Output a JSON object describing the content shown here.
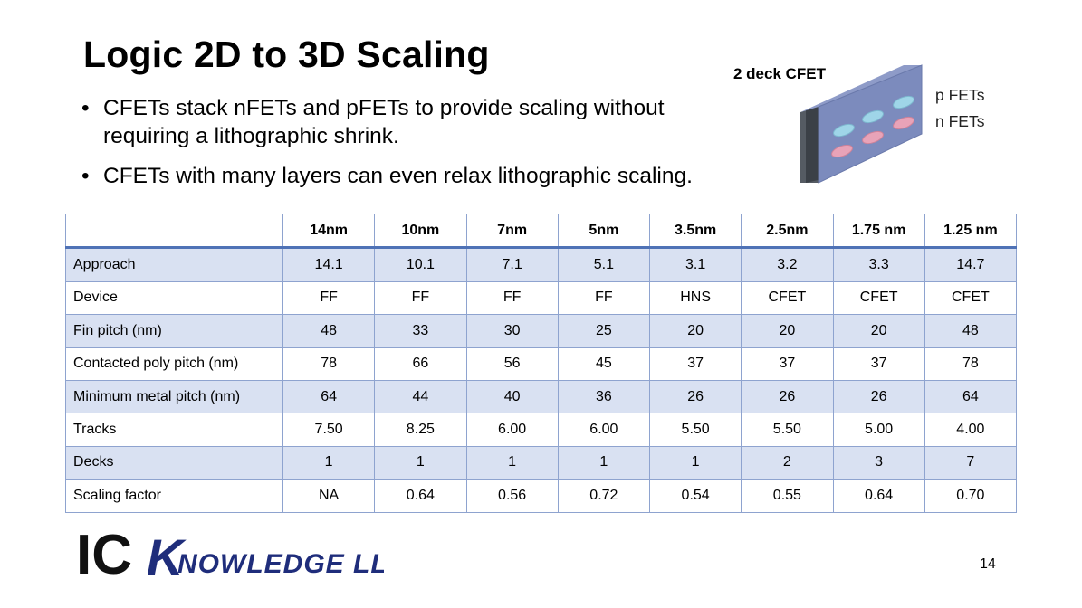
{
  "slide": {
    "title": "Logic 2D to 3D Scaling",
    "bullets": [
      "CFETs stack nFETs and pFETs to provide scaling without requiring a lithographic shrink.",
      "CFETs with many layers can even relax lithographic scaling."
    ],
    "page_number": "14"
  },
  "diagram": {
    "title": "2 deck CFET",
    "top_label": "p FETs",
    "bottom_label": "n FETs",
    "colors": {
      "slab": "#7c8bbd",
      "slab_edge": "#444a52",
      "pfet": "#9fd5e8",
      "nfet": "#e8a3b8"
    }
  },
  "logo": {
    "text_ic": "IC",
    "text_rest": "KNOWLEDGE LLC",
    "color": "#1f2d7b"
  },
  "table": {
    "headers": [
      "",
      "14nm",
      "10nm",
      "7nm",
      "5nm",
      "3.5nm",
      "2.5nm",
      "1.75 nm",
      "1.25 nm"
    ],
    "rows": [
      [
        "Approach",
        "14.1",
        "10.1",
        "7.1",
        "5.1",
        "3.1",
        "3.2",
        "3.3",
        "14.7"
      ],
      [
        "Device",
        "FF",
        "FF",
        "FF",
        "FF",
        "HNS",
        "CFET",
        "CFET",
        "CFET"
      ],
      [
        "Fin pitch (nm)",
        "48",
        "33",
        "30",
        "25",
        "20",
        "20",
        "20",
        "48"
      ],
      [
        "Contacted poly pitch (nm)",
        "78",
        "66",
        "56",
        "45",
        "37",
        "37",
        "37",
        "78"
      ],
      [
        "Minimum metal pitch (nm)",
        "64",
        "44",
        "40",
        "36",
        "26",
        "26",
        "26",
        "64"
      ],
      [
        "Tracks",
        "7.50",
        "8.25",
        "6.00",
        "6.00",
        "5.50",
        "5.50",
        "5.00",
        "4.00"
      ],
      [
        "Decks",
        "1",
        "1",
        "1",
        "1",
        "1",
        "2",
        "3",
        "7"
      ],
      [
        "Scaling factor",
        "NA",
        "0.64",
        "0.56",
        "0.72",
        "0.54",
        "0.55",
        "0.64",
        "0.70"
      ]
    ]
  }
}
